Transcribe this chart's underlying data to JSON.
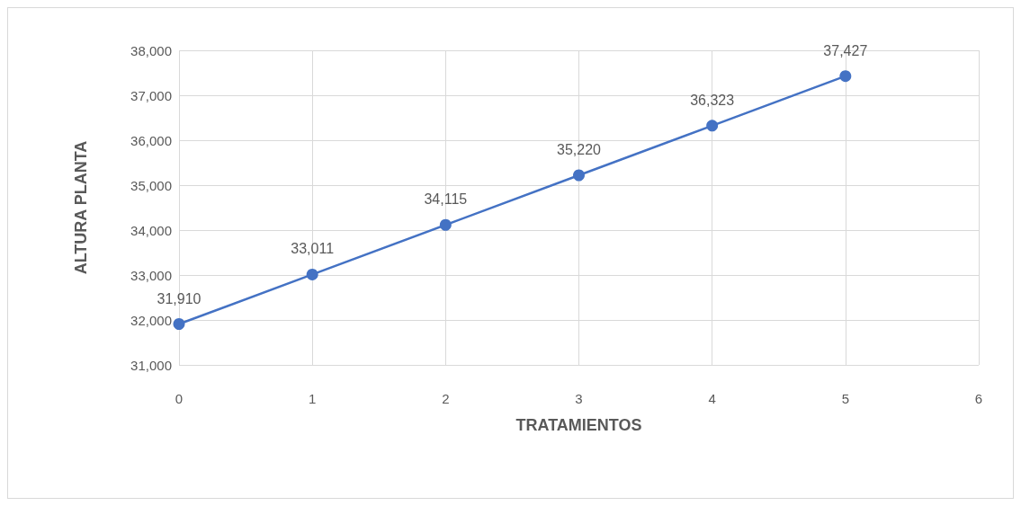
{
  "chart_data": {
    "type": "line",
    "xlabel": "TRATAMIENTOS",
    "ylabel": "ALTURA PLANTA",
    "x": [
      0,
      1,
      2,
      3,
      4,
      5
    ],
    "series": [
      {
        "color": "#4472c4",
        "values": [
          31910,
          33011,
          34115,
          35220,
          36323,
          37427
        ],
        "value_labels": [
          "31,910",
          "33,011",
          "34,115",
          "35,220",
          "36,323",
          "37,427"
        ]
      }
    ],
    "xlim": [
      0,
      6
    ],
    "xticks": [
      0,
      1,
      2,
      3,
      4,
      5,
      6
    ],
    "ylim": [
      31000,
      38000
    ],
    "yticks": [
      {
        "value": 31000,
        "label": "31,000"
      },
      {
        "value": 32000,
        "label": "32,000"
      },
      {
        "value": 33000,
        "label": "33,000"
      },
      {
        "value": 34000,
        "label": "34,000"
      },
      {
        "value": 35000,
        "label": "35,000"
      },
      {
        "value": 36000,
        "label": "36,000"
      },
      {
        "value": 37000,
        "label": "37,000"
      },
      {
        "value": 38000,
        "label": "38,000"
      }
    ],
    "grid": true,
    "marker": "circle",
    "line_style": "solid"
  }
}
